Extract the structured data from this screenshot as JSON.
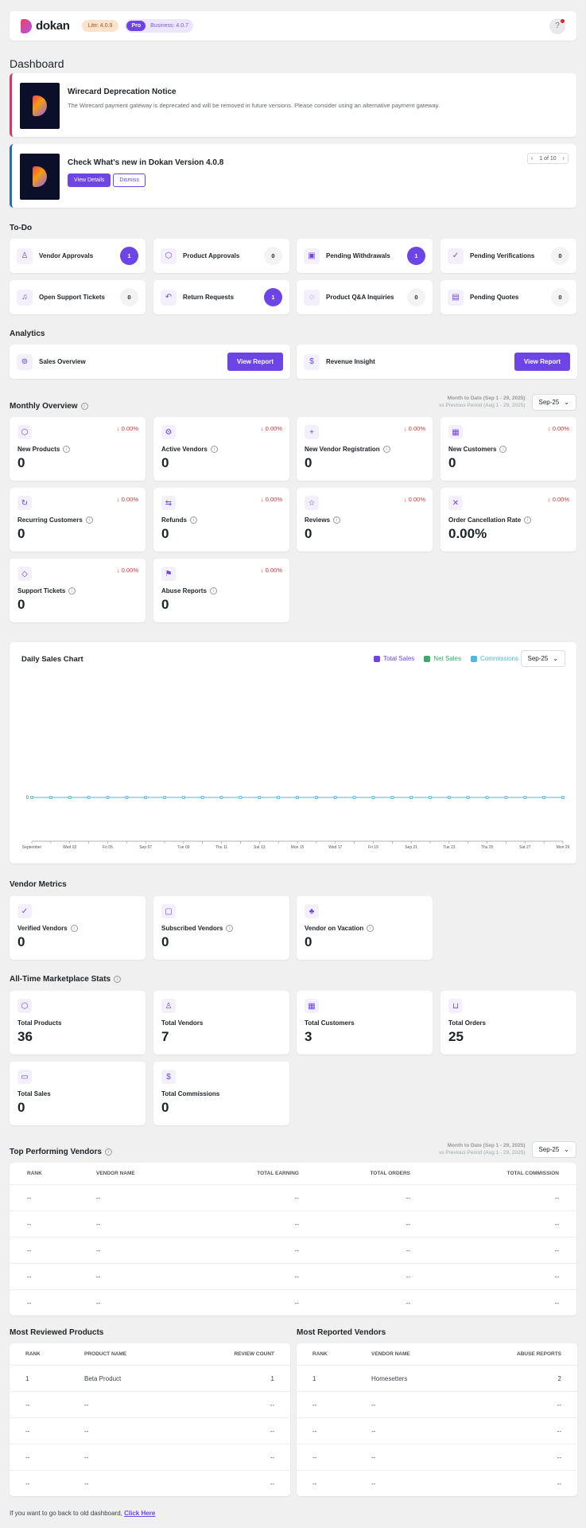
{
  "header": {
    "logo_text": "dokan",
    "lite_badge": "Lite: 4.0.9",
    "pro_badge": "Pro",
    "business_badge": "Business: 4.0.7",
    "help": "?"
  },
  "page_title": "Dashboard",
  "notices": [
    {
      "title": "Wirecard Deprecation Notice",
      "text": "The Wirecard payment gateway is deprecated and will be removed in future versions. Please consider using an alternative payment gateway.",
      "accent": "#d63863"
    },
    {
      "title": "Check What's new in Dokan Version 4.0.8",
      "view_label": "View Details",
      "dismiss_label": "Dismiss",
      "pager": "1 of 10",
      "accent": "#2271b1"
    }
  ],
  "todo": {
    "title": "To-Do",
    "items": [
      {
        "label": "Vendor Approvals",
        "count": "1",
        "icon": "user-check-icon"
      },
      {
        "label": "Product Approvals",
        "count": "0",
        "icon": "box-icon"
      },
      {
        "label": "Pending Withdrawals",
        "count": "1",
        "icon": "wallet-icon"
      },
      {
        "label": "Pending Verifications",
        "count": "0",
        "icon": "check-circle-icon"
      },
      {
        "label": "Open Support Tickets",
        "count": "0",
        "icon": "headset-icon"
      },
      {
        "label": "Return Requests",
        "count": "1",
        "icon": "return-arrow-icon"
      },
      {
        "label": "Product Q&A Inquiries",
        "count": "0",
        "icon": "chat-bubble-icon"
      },
      {
        "label": "Pending Quotes",
        "count": "0",
        "icon": "document-icon"
      }
    ]
  },
  "analytics": {
    "title": "Analytics",
    "items": [
      {
        "label": "Sales Overview",
        "button": "View Report",
        "icon": "coins-icon"
      },
      {
        "label": "Revenue Insight",
        "button": "View Report",
        "icon": "dollar-icon"
      }
    ]
  },
  "period": {
    "line1": "Month to Date (Sep 1 - 29, 2025)",
    "line2": "vs Previous Period (Aug 1 - 29, 2025)",
    "select": "Sep-25"
  },
  "monthly": {
    "title": "Monthly Overview",
    "items": [
      {
        "label": "New Products",
        "value": "0",
        "change": "↓ 0.00%",
        "icon": "box-icon"
      },
      {
        "label": "Active Vendors",
        "value": "0",
        "change": "↓ 0.00%",
        "icon": "user-gear-icon"
      },
      {
        "label": "New Vendor Registration",
        "value": "0",
        "change": "↓ 0.00%",
        "icon": "user-plus-icon"
      },
      {
        "label": "New Customers",
        "value": "0",
        "change": "↓ 0.00%",
        "icon": "customer-icon"
      },
      {
        "label": "Recurring Customers",
        "value": "0",
        "change": "↓ 0.00%",
        "icon": "recurring-icon"
      },
      {
        "label": "Refunds",
        "value": "0",
        "change": "↓ 0.00%",
        "icon": "refund-icon"
      },
      {
        "label": "Reviews",
        "value": "0",
        "change": "↓ 0.00%",
        "icon": "star-icon"
      },
      {
        "label": "Order Cancellation Rate",
        "value": "0.00%",
        "change": "↓ 0.00%",
        "icon": "cancel-icon"
      },
      {
        "label": "Support Tickets",
        "value": "0",
        "change": "↓ 0.00%",
        "icon": "tag-icon"
      },
      {
        "label": "Abuse Reports",
        "value": "0",
        "change": "↓ 0.00%",
        "icon": "flag-icon"
      }
    ]
  },
  "chart_data": {
    "type": "line",
    "title": "Daily Sales Chart",
    "select": "Sep-25",
    "x": [
      "September",
      "",
      "Wed 03",
      "",
      "Fri 05",
      "",
      "Sep 07",
      "",
      "Tue 09",
      "",
      "Thu 11",
      "",
      "Sat 13",
      "",
      "Mon 15",
      "",
      "Wed 17",
      "",
      "Fri 19",
      "",
      "Sep 21",
      "",
      "Tue 23",
      "",
      "Thu 25",
      "",
      "Sat 27",
      "",
      "Mon 29"
    ],
    "series": [
      {
        "name": "Total Sales",
        "color": "#6d44e6",
        "values": [
          0,
          0,
          0,
          0,
          0,
          0,
          0,
          0,
          0,
          0,
          0,
          0,
          0,
          0,
          0,
          0,
          0,
          0,
          0,
          0,
          0,
          0,
          0,
          0,
          0,
          0,
          0,
          0,
          0
        ]
      },
      {
        "name": "Net Sales",
        "color": "#3da96b",
        "values": [
          0,
          0,
          0,
          0,
          0,
          0,
          0,
          0,
          0,
          0,
          0,
          0,
          0,
          0,
          0,
          0,
          0,
          0,
          0,
          0,
          0,
          0,
          0,
          0,
          0,
          0,
          0,
          0,
          0
        ]
      },
      {
        "name": "Commissions",
        "color": "#4fb8e0",
        "values": [
          0,
          0,
          0,
          0,
          0,
          0,
          0,
          0,
          0,
          0,
          0,
          0,
          0,
          0,
          0,
          0,
          0,
          0,
          0,
          0,
          0,
          0,
          0,
          0,
          0,
          0,
          0,
          0,
          0
        ]
      }
    ],
    "y_tick": "0"
  },
  "vendor_metrics": {
    "title": "Vendor Metrics",
    "items": [
      {
        "label": "Verified Vendors",
        "value": "0",
        "icon": "verified-user-icon"
      },
      {
        "label": "Subscribed Vendors",
        "value": "0",
        "icon": "id-card-icon"
      },
      {
        "label": "Vendor on Vacation",
        "value": "0",
        "icon": "palm-tree-icon"
      }
    ]
  },
  "alltime": {
    "title": "All-Time Marketplace Stats",
    "items": [
      {
        "label": "Total Products",
        "value": "36",
        "icon": "box-icon"
      },
      {
        "label": "Total Vendors",
        "value": "7",
        "icon": "user-icon"
      },
      {
        "label": "Total Customers",
        "value": "3",
        "icon": "customer-card-icon"
      },
      {
        "label": "Total Orders",
        "value": "25",
        "icon": "cart-icon"
      },
      {
        "label": "Total Sales",
        "value": "0",
        "icon": "cash-icon"
      },
      {
        "label": "Total Commissions",
        "value": "0",
        "icon": "dollar-icon"
      }
    ]
  },
  "top_vendors": {
    "title": "Top Performing Vendors",
    "columns": [
      "Rank",
      "Vendor Name",
      "Total Earning",
      "Total Orders",
      "Total Commission"
    ],
    "rows": [
      [
        "--",
        "--",
        "--",
        "--",
        "--"
      ],
      [
        "--",
        "--",
        "--",
        "--",
        "--"
      ],
      [
        "--",
        "--",
        "--",
        "--",
        "--"
      ],
      [
        "--",
        "--",
        "--",
        "--",
        "--"
      ],
      [
        "--",
        "--",
        "--",
        "--",
        "--"
      ]
    ]
  },
  "most_reviewed": {
    "title": "Most Reviewed Products",
    "columns": [
      "Rank",
      "Product Name",
      "Review Count"
    ],
    "rows": [
      [
        "1",
        "Beta Product",
        "1"
      ],
      [
        "--",
        "--",
        "--"
      ],
      [
        "--",
        "--",
        "--"
      ],
      [
        "--",
        "--",
        "--"
      ],
      [
        "--",
        "--",
        "--"
      ]
    ]
  },
  "most_reported": {
    "title": "Most Reported Vendors",
    "columns": [
      "Rank",
      "Vendor Name",
      "Abuse Reports"
    ],
    "rows": [
      [
        "1",
        "Homesetters",
        "2"
      ],
      [
        "--",
        "--",
        "--"
      ],
      [
        "--",
        "--",
        "--"
      ],
      [
        "--",
        "--",
        "--"
      ],
      [
        "--",
        "--",
        "--"
      ]
    ]
  },
  "footer": {
    "text": "If you want to go back to old dashboard,",
    "link": "Click Here"
  }
}
